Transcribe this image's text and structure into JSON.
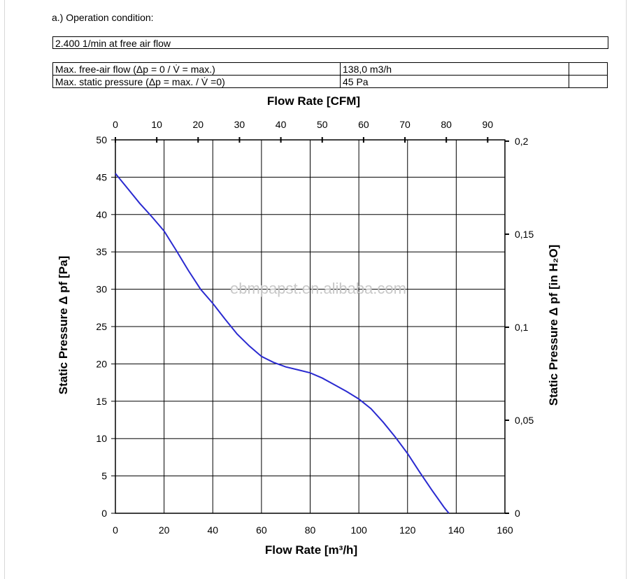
{
  "header": {
    "heading": "a.) Operation condition:",
    "condition": "2.400 1/min at free air flow"
  },
  "specs": [
    {
      "label": "Max. free-air flow (Δp = 0 / V̇ = max.)",
      "value": "138,0 m3/h"
    },
    {
      "label": "Max. static pressure (Δp = max. / V̇ =0)",
      "value": "45 Pa"
    }
  ],
  "watermark": "ebmpapst.en.alibaba.com",
  "colors": {
    "curve": "#2a2ad0",
    "grid": "#000000"
  },
  "chart_data": {
    "type": "line",
    "title": "",
    "xlabel": "Flow Rate [m³/h]",
    "ylabel": "Static Pressure Δ pf [Pa]",
    "x2label": "Flow Rate [CFM]",
    "y2label": "Static Pressure Δ pf [in H₂O]",
    "xlim": [
      0,
      160
    ],
    "ylim": [
      0,
      50
    ],
    "x2lim": [
      0,
      94.17
    ],
    "y2lim": [
      0,
      0.2007
    ],
    "grid": true,
    "xticks": [
      0,
      20,
      40,
      60,
      80,
      100,
      120,
      140,
      160
    ],
    "xtick_labels": [
      "0",
      "20",
      "40",
      "60",
      "80",
      "100",
      "120",
      "140",
      "160"
    ],
    "yticks": [
      0,
      5,
      10,
      15,
      20,
      25,
      30,
      35,
      40,
      45,
      50
    ],
    "ytick_labels": [
      "0",
      "5",
      "10",
      "15",
      "20",
      "25",
      "30",
      "35",
      "40",
      "45",
      "50"
    ],
    "x2ticks": [
      0,
      10,
      20,
      30,
      40,
      50,
      60,
      70,
      80,
      90
    ],
    "x2tick_labels": [
      "0",
      "10",
      "20",
      "30",
      "40",
      "50",
      "60",
      "70",
      "80",
      "90"
    ],
    "y2ticks": [
      0,
      0.05,
      0.1,
      0.15,
      0.2
    ],
    "y2tick_labels": [
      "0",
      "0,05",
      "0,1",
      "0,15",
      "0,2"
    ],
    "series": [
      {
        "name": "Static pressure",
        "x": [
          0,
          5,
          10,
          15,
          20,
          25,
          30,
          35,
          40,
          45,
          50,
          55,
          60,
          65,
          70,
          75,
          80,
          85,
          90,
          95,
          100,
          105,
          110,
          115,
          120,
          125,
          130,
          135,
          137
        ],
        "y": [
          45.5,
          43.5,
          41.5,
          39.7,
          37.8,
          35.2,
          32.5,
          30.0,
          28.1,
          26.0,
          24.0,
          22.4,
          21.0,
          20.2,
          19.6,
          19.2,
          18.8,
          18.1,
          17.2,
          16.3,
          15.3,
          14.0,
          12.2,
          10.2,
          8.0,
          5.5,
          3.1,
          0.8,
          0
        ]
      }
    ]
  }
}
